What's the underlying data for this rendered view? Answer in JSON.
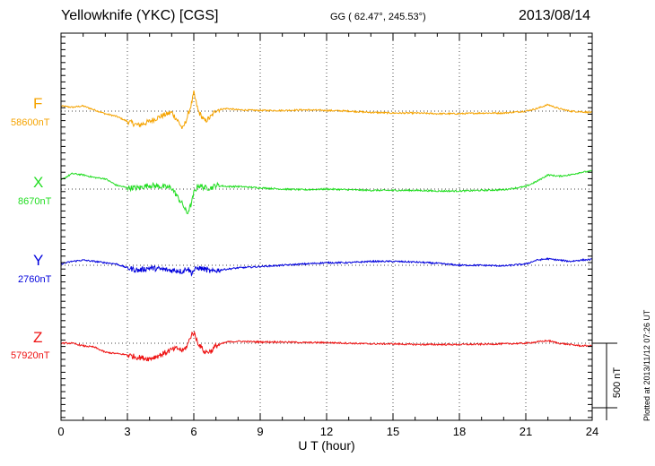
{
  "header": {
    "title": "Yellowknife (YKC)  [CGS]",
    "coords": "GG ( 62.47°, 245.53°)",
    "date": "2013/08/14"
  },
  "footer": {
    "plotted": "Plotted at 2013/11/12 07:26 UT"
  },
  "chart_data": {
    "type": "line",
    "xlabel": "U T (hour)",
    "xlim": [
      0,
      24
    ],
    "xticks": [
      0,
      3,
      6,
      9,
      12,
      15,
      18,
      21,
      24
    ],
    "xtick_labels": [
      "0",
      "3",
      "6",
      "9",
      "12",
      "15",
      "18",
      "21",
      "24"
    ],
    "grid": true,
    "scale_bar": {
      "label": "500 nT",
      "value_nT": 500
    },
    "series": [
      {
        "name": "F",
        "baseline_label": "58600nT",
        "baseline_nT": 58600,
        "color": "#f5a300",
        "x": [
          0,
          0.5,
          1,
          1.5,
          2,
          2.5,
          3,
          3.5,
          4,
          4.5,
          5,
          5.3,
          5.5,
          5.7,
          5.9,
          6.0,
          6.2,
          6.5,
          6.8,
          7,
          7.5,
          8,
          9,
          10,
          11,
          12,
          13,
          14,
          15,
          16,
          17,
          18,
          19,
          20,
          21,
          21.5,
          22,
          22.5,
          23,
          23.5,
          24
        ],
        "values": [
          58640,
          58630,
          58640,
          58610,
          58580,
          58560,
          58520,
          58490,
          58520,
          58560,
          58590,
          58520,
          58460,
          58550,
          58660,
          58740,
          58600,
          58520,
          58560,
          58610,
          58620,
          58610,
          58605,
          58605,
          58610,
          58605,
          58600,
          58590,
          58585,
          58585,
          58580,
          58580,
          58585,
          58585,
          58600,
          58620,
          58650,
          58620,
          58600,
          58595,
          58590
        ]
      },
      {
        "name": "X",
        "baseline_label": "8670nT",
        "baseline_nT": 8670,
        "color": "#22dd22",
        "x": [
          0,
          0.5,
          1,
          1.5,
          2,
          2.5,
          3,
          3.5,
          4,
          4.5,
          5,
          5.3,
          5.5,
          5.7,
          5.9,
          6.0,
          6.2,
          6.5,
          6.8,
          7,
          7.5,
          8,
          9,
          10,
          11,
          12,
          13,
          14,
          15,
          16,
          17,
          18,
          19,
          20,
          21,
          21.5,
          22,
          22.5,
          23,
          23.5,
          24
        ],
        "values": [
          8740,
          8790,
          8780,
          8760,
          8750,
          8700,
          8680,
          8680,
          8700,
          8690,
          8680,
          8600,
          8550,
          8480,
          8560,
          8640,
          8700,
          8680,
          8680,
          8700,
          8690,
          8690,
          8680,
          8670,
          8665,
          8670,
          8665,
          8660,
          8660,
          8660,
          8655,
          8655,
          8660,
          8665,
          8690,
          8730,
          8780,
          8770,
          8780,
          8800,
          8810
        ]
      },
      {
        "name": "Y",
        "baseline_label": "2760nT",
        "baseline_nT": 2760,
        "color": "#0000dd",
        "x": [
          0,
          0.5,
          1,
          1.5,
          2,
          2.5,
          3,
          3.5,
          4,
          4.5,
          5,
          5.3,
          5.5,
          5.7,
          5.9,
          6.0,
          6.2,
          6.5,
          6.8,
          7,
          7.5,
          8,
          9,
          10,
          11,
          12,
          13,
          14,
          15,
          16,
          17,
          18,
          19,
          20,
          21,
          21.5,
          22,
          22.5,
          23,
          23.5,
          24
        ],
        "values": [
          2770,
          2790,
          2800,
          2790,
          2780,
          2770,
          2740,
          2720,
          2740,
          2730,
          2720,
          2720,
          2710,
          2740,
          2700,
          2720,
          2740,
          2730,
          2710,
          2720,
          2730,
          2740,
          2750,
          2760,
          2770,
          2780,
          2780,
          2790,
          2790,
          2785,
          2775,
          2760,
          2760,
          2755,
          2770,
          2800,
          2810,
          2800,
          2790,
          2800,
          2805
        ]
      },
      {
        "name": "Z",
        "baseline_label": "57920nT",
        "baseline_nT": 57920,
        "color": "#ee1111",
        "x": [
          0,
          0.5,
          1,
          1.5,
          2,
          2.5,
          3,
          3.5,
          4,
          4.5,
          5,
          5.3,
          5.5,
          5.7,
          5.9,
          6.0,
          6.2,
          6.5,
          6.8,
          7,
          7.5,
          8,
          9,
          10,
          11,
          12,
          13,
          14,
          15,
          16,
          17,
          18,
          19,
          20,
          21,
          21.5,
          22,
          22.5,
          23,
          23.5,
          24
        ],
        "values": [
          57920,
          57920,
          57900,
          57890,
          57850,
          57840,
          57830,
          57810,
          57800,
          57830,
          57870,
          57880,
          57860,
          57900,
          57990,
          58000,
          57920,
          57850,
          57860,
          57900,
          57930,
          57935,
          57930,
          57930,
          57925,
          57925,
          57920,
          57915,
          57915,
          57910,
          57910,
          57910,
          57912,
          57915,
          57920,
          57930,
          57940,
          57920,
          57910,
          57900,
          57900
        ]
      }
    ]
  }
}
